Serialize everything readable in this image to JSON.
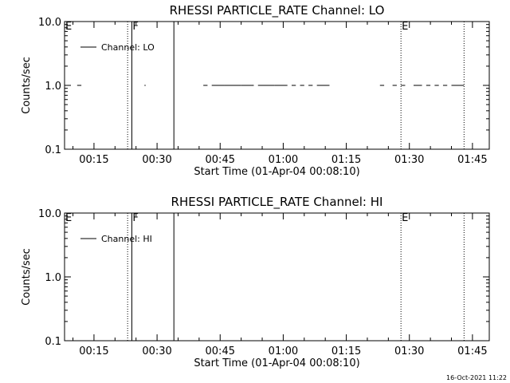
{
  "chart_data": [
    {
      "type": "line",
      "title": "RHESSI PARTICLE_RATE Channel: LO",
      "xlabel": "Start Time (01-Apr-04 00:08:10)",
      "ylabel": "Counts/sec",
      "y_scale": "log",
      "ylim": [
        0.1,
        10.0
      ],
      "y_ticks": [
        "0.1",
        "1.0",
        "10.0"
      ],
      "x_ticks": [
        "00:15",
        "00:30",
        "00:45",
        "01:00",
        "01:15",
        "01:30",
        "01:45"
      ],
      "legend": {
        "placement": "top-left",
        "entries": [
          "Channel: LO"
        ]
      },
      "markers": [
        {
          "label": "E",
          "time": "00:08",
          "style": "dotted"
        },
        {
          "label": "",
          "time": "00:23",
          "style": "dotted"
        },
        {
          "label": "F",
          "time": "00:24",
          "style": "solid"
        },
        {
          "label": "",
          "time": "00:34",
          "style": "solid"
        },
        {
          "label": "E",
          "time": "01:28",
          "style": "dotted"
        },
        {
          "label": "",
          "time": "01:43",
          "style": "dotted"
        }
      ],
      "series": [
        {
          "name": "Channel: LO",
          "y": 1.0,
          "segments": [
            [
              "00:11",
              "00:12"
            ],
            [
              "00:27",
              "00:27"
            ],
            [
              "00:41",
              "00:42"
            ],
            [
              "00:43",
              "00:46"
            ],
            [
              "00:46",
              "00:50"
            ],
            [
              "00:50",
              "00:53"
            ],
            [
              "00:54",
              "00:58"
            ],
            [
              "00:58",
              "01:01"
            ],
            [
              "01:02",
              "01:03"
            ],
            [
              "01:04",
              "01:05"
            ],
            [
              "01:06",
              "01:07"
            ],
            [
              "01:08",
              "01:11"
            ],
            [
              "01:23",
              "01:24"
            ],
            [
              "01:26",
              "01:27"
            ],
            [
              "01:28",
              "01:29"
            ],
            [
              "01:31",
              "01:33"
            ],
            [
              "01:34",
              "01:35"
            ],
            [
              "01:36",
              "01:37"
            ],
            [
              "01:38",
              "01:39"
            ],
            [
              "01:40",
              "01:43"
            ]
          ]
        }
      ]
    },
    {
      "type": "line",
      "title": "RHESSI PARTICLE_RATE Channel: HI",
      "xlabel": "Start Time (01-Apr-04 00:08:10)",
      "ylabel": "Counts/sec",
      "y_scale": "log",
      "ylim": [
        0.1,
        10.0
      ],
      "y_ticks": [
        "0.1",
        "1.0",
        "10.0"
      ],
      "x_ticks": [
        "00:15",
        "00:30",
        "00:45",
        "01:00",
        "01:15",
        "01:30",
        "01:45"
      ],
      "legend": {
        "placement": "top-left",
        "entries": [
          "Channel: HI"
        ]
      },
      "markers": [
        {
          "label": "E",
          "time": "00:08",
          "style": "dotted"
        },
        {
          "label": "",
          "time": "00:23",
          "style": "dotted"
        },
        {
          "label": "F",
          "time": "00:24",
          "style": "solid"
        },
        {
          "label": "",
          "time": "00:34",
          "style": "solid"
        },
        {
          "label": "E",
          "time": "01:28",
          "style": "dotted"
        },
        {
          "label": "",
          "time": "01:43",
          "style": "dotted"
        }
      ],
      "series": [
        {
          "name": "Channel: HI",
          "y": 1.0,
          "segments": []
        }
      ]
    }
  ],
  "footer": {
    "date_stamp": "16-Oct-2021 11:22"
  }
}
